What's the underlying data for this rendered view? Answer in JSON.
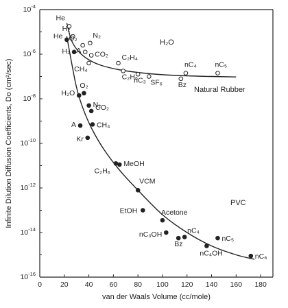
{
  "chart_data": {
    "type": "scatter",
    "xlabel": "van der Waals Volume (cc/mole)",
    "ylabel": "Infinite Dilution Diffusion Coefficients, Do (cm²/sec)",
    "y_scale": "log",
    "xlim": [
      0,
      190
    ],
    "ylim_exp": [
      -16,
      -4
    ],
    "x_ticks": [
      0,
      20,
      40,
      60,
      80,
      100,
      120,
      140,
      160,
      180
    ],
    "y_ticks_exp": [
      -16,
      -14,
      -12,
      -10,
      -8,
      -6,
      -4
    ],
    "annotations": [
      "Natural Rubber",
      "PVC",
      "H₂O"
    ],
    "series": [
      {
        "name": "Natural Rubber",
        "marker": "open",
        "points": [
          {
            "label": "He",
            "x": 24,
            "y_exp": -4.75
          },
          {
            "label": "H₂",
            "x": 27,
            "y_exp": -5.2
          },
          {
            "label": "O₂",
            "x": 35,
            "y_exp": -5.6
          },
          {
            "label": "N₂",
            "x": 41,
            "y_exp": -5.5
          },
          {
            "label": "A",
            "x": 37,
            "y_exp": -5.9
          },
          {
            "label": "CO₂",
            "x": 42,
            "y_exp": -6.05
          },
          {
            "label": "CH₄",
            "x": 40,
            "y_exp": -6.4
          },
          {
            "label": "C₂H₄",
            "x": 64,
            "y_exp": -6.4
          },
          {
            "label": "C₂H₆",
            "x": 68,
            "y_exp": -6.75
          },
          {
            "label": "nC₃",
            "x": 80,
            "y_exp": -6.9
          },
          {
            "label": "SF₆",
            "x": 89,
            "y_exp": -7.0
          },
          {
            "label": "Bz",
            "x": 115,
            "y_exp": -7.1
          },
          {
            "label": "nC₄",
            "x": 119,
            "y_exp": -6.85
          },
          {
            "label": "nC₅",
            "x": 145,
            "y_exp": -6.85
          }
        ],
        "trend_curve": [
          [
            22,
            -4.6
          ],
          [
            26,
            -5.4
          ],
          [
            32,
            -5.9
          ],
          [
            40,
            -6.25
          ],
          [
            50,
            -6.5
          ],
          [
            65,
            -6.7
          ],
          [
            85,
            -6.85
          ],
          [
            110,
            -6.95
          ],
          [
            140,
            -7.0
          ],
          [
            160,
            -7.02
          ]
        ]
      },
      {
        "name": "PVC",
        "marker": "filled",
        "points": [
          {
            "label": "He",
            "x": 22,
            "y_exp": -5.35
          },
          {
            "label": "H₂",
            "x": 28,
            "y_exp": -5.9
          },
          {
            "label": "H₂O",
            "x": 32,
            "y_exp": -7.85
          },
          {
            "label": "O₂",
            "x": 36,
            "y_exp": -7.75
          },
          {
            "label": "N₂",
            "x": 40,
            "y_exp": -8.3
          },
          {
            "label": "CO₂",
            "x": 42,
            "y_exp": -8.55
          },
          {
            "label": "A",
            "x": 33,
            "y_exp": -9.2
          },
          {
            "label": "CH₄",
            "x": 43,
            "y_exp": -9.15
          },
          {
            "label": "Kr",
            "x": 39,
            "y_exp": -9.75
          },
          {
            "label": "MeOH",
            "x": 65,
            "y_exp": -10.95
          },
          {
            "label": "C₂H₆",
            "x": 62,
            "y_exp": -10.9
          },
          {
            "label": "VCM",
            "x": 80,
            "y_exp": -12.1
          },
          {
            "label": "EtOH",
            "x": 84,
            "y_exp": -13.0
          },
          {
            "label": "Acetone",
            "x": 100,
            "y_exp": -13.45
          },
          {
            "label": "nC₃OH",
            "x": 103,
            "y_exp": -14.0
          },
          {
            "label": "nC₄",
            "x": 118,
            "y_exp": -14.2
          },
          {
            "label": "Bz",
            "x": 113,
            "y_exp": -14.25
          },
          {
            "label": "nC₄OH",
            "x": 136,
            "y_exp": -14.6
          },
          {
            "label": "nC₅",
            "x": 145,
            "y_exp": -14.25
          },
          {
            "label": "nC₆",
            "x": 172,
            "y_exp": -15.05
          }
        ],
        "trend_curve": [
          [
            22,
            -5.2
          ],
          [
            26,
            -6.4
          ],
          [
            30,
            -7.5
          ],
          [
            35,
            -8.4
          ],
          [
            42,
            -9.3
          ],
          [
            52,
            -10.25
          ],
          [
            65,
            -11.2
          ],
          [
            80,
            -12.1
          ],
          [
            100,
            -13.2
          ],
          [
            120,
            -14.0
          ],
          [
            140,
            -14.6
          ],
          [
            160,
            -15.0
          ],
          [
            175,
            -15.2
          ]
        ]
      }
    ]
  }
}
